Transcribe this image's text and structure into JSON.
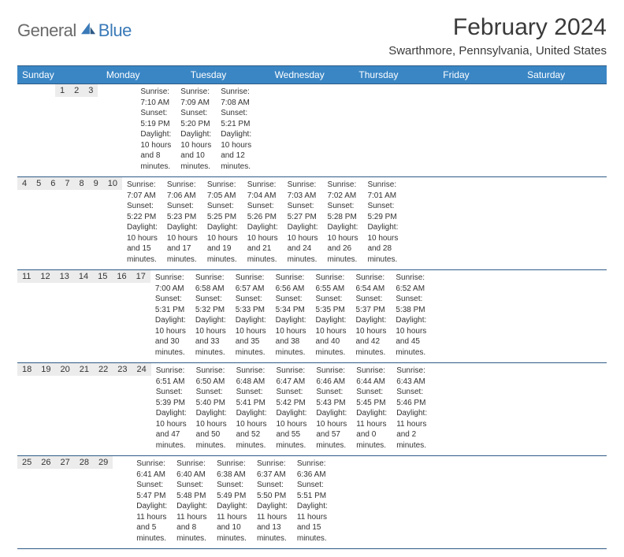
{
  "logo": {
    "text1": "General",
    "text2": "Blue"
  },
  "title": "February 2024",
  "location": "Swarthmore, Pennsylvania, United States",
  "style": {
    "header_bg": "#3a86c5",
    "header_text": "#ffffff",
    "border_color": "#2e5b86",
    "daynum_bg": "#ececec",
    "page_bg": "#ffffff",
    "body_text": "#333333",
    "title_fontsize": 30,
    "location_fontsize": 15,
    "dayheader_fontsize": 12,
    "daynum_fontsize": 11,
    "info_fontsize": 10,
    "logo_gray": "#6a6a6a",
    "logo_blue": "#3a7ab8"
  },
  "day_headers": [
    "Sunday",
    "Monday",
    "Tuesday",
    "Wednesday",
    "Thursday",
    "Friday",
    "Saturday"
  ],
  "weeks": [
    [
      {
        "blank": true
      },
      {
        "blank": true
      },
      {
        "blank": true
      },
      {
        "blank": true
      },
      {
        "n": "1",
        "sr": "Sunrise: 7:10 AM",
        "ss": "Sunset: 5:19 PM",
        "d1": "Daylight: 10 hours",
        "d2": "and 8 minutes."
      },
      {
        "n": "2",
        "sr": "Sunrise: 7:09 AM",
        "ss": "Sunset: 5:20 PM",
        "d1": "Daylight: 10 hours",
        "d2": "and 10 minutes."
      },
      {
        "n": "3",
        "sr": "Sunrise: 7:08 AM",
        "ss": "Sunset: 5:21 PM",
        "d1": "Daylight: 10 hours",
        "d2": "and 12 minutes."
      }
    ],
    [
      {
        "n": "4",
        "sr": "Sunrise: 7:07 AM",
        "ss": "Sunset: 5:22 PM",
        "d1": "Daylight: 10 hours",
        "d2": "and 15 minutes."
      },
      {
        "n": "5",
        "sr": "Sunrise: 7:06 AM",
        "ss": "Sunset: 5:23 PM",
        "d1": "Daylight: 10 hours",
        "d2": "and 17 minutes."
      },
      {
        "n": "6",
        "sr": "Sunrise: 7:05 AM",
        "ss": "Sunset: 5:25 PM",
        "d1": "Daylight: 10 hours",
        "d2": "and 19 minutes."
      },
      {
        "n": "7",
        "sr": "Sunrise: 7:04 AM",
        "ss": "Sunset: 5:26 PM",
        "d1": "Daylight: 10 hours",
        "d2": "and 21 minutes."
      },
      {
        "n": "8",
        "sr": "Sunrise: 7:03 AM",
        "ss": "Sunset: 5:27 PM",
        "d1": "Daylight: 10 hours",
        "d2": "and 24 minutes."
      },
      {
        "n": "9",
        "sr": "Sunrise: 7:02 AM",
        "ss": "Sunset: 5:28 PM",
        "d1": "Daylight: 10 hours",
        "d2": "and 26 minutes."
      },
      {
        "n": "10",
        "sr": "Sunrise: 7:01 AM",
        "ss": "Sunset: 5:29 PM",
        "d1": "Daylight: 10 hours",
        "d2": "and 28 minutes."
      }
    ],
    [
      {
        "n": "11",
        "sr": "Sunrise: 7:00 AM",
        "ss": "Sunset: 5:31 PM",
        "d1": "Daylight: 10 hours",
        "d2": "and 30 minutes."
      },
      {
        "n": "12",
        "sr": "Sunrise: 6:58 AM",
        "ss": "Sunset: 5:32 PM",
        "d1": "Daylight: 10 hours",
        "d2": "and 33 minutes."
      },
      {
        "n": "13",
        "sr": "Sunrise: 6:57 AM",
        "ss": "Sunset: 5:33 PM",
        "d1": "Daylight: 10 hours",
        "d2": "and 35 minutes."
      },
      {
        "n": "14",
        "sr": "Sunrise: 6:56 AM",
        "ss": "Sunset: 5:34 PM",
        "d1": "Daylight: 10 hours",
        "d2": "and 38 minutes."
      },
      {
        "n": "15",
        "sr": "Sunrise: 6:55 AM",
        "ss": "Sunset: 5:35 PM",
        "d1": "Daylight: 10 hours",
        "d2": "and 40 minutes."
      },
      {
        "n": "16",
        "sr": "Sunrise: 6:54 AM",
        "ss": "Sunset: 5:37 PM",
        "d1": "Daylight: 10 hours",
        "d2": "and 42 minutes."
      },
      {
        "n": "17",
        "sr": "Sunrise: 6:52 AM",
        "ss": "Sunset: 5:38 PM",
        "d1": "Daylight: 10 hours",
        "d2": "and 45 minutes."
      }
    ],
    [
      {
        "n": "18",
        "sr": "Sunrise: 6:51 AM",
        "ss": "Sunset: 5:39 PM",
        "d1": "Daylight: 10 hours",
        "d2": "and 47 minutes."
      },
      {
        "n": "19",
        "sr": "Sunrise: 6:50 AM",
        "ss": "Sunset: 5:40 PM",
        "d1": "Daylight: 10 hours",
        "d2": "and 50 minutes."
      },
      {
        "n": "20",
        "sr": "Sunrise: 6:48 AM",
        "ss": "Sunset: 5:41 PM",
        "d1": "Daylight: 10 hours",
        "d2": "and 52 minutes."
      },
      {
        "n": "21",
        "sr": "Sunrise: 6:47 AM",
        "ss": "Sunset: 5:42 PM",
        "d1": "Daylight: 10 hours",
        "d2": "and 55 minutes."
      },
      {
        "n": "22",
        "sr": "Sunrise: 6:46 AM",
        "ss": "Sunset: 5:43 PM",
        "d1": "Daylight: 10 hours",
        "d2": "and 57 minutes."
      },
      {
        "n": "23",
        "sr": "Sunrise: 6:44 AM",
        "ss": "Sunset: 5:45 PM",
        "d1": "Daylight: 11 hours",
        "d2": "and 0 minutes."
      },
      {
        "n": "24",
        "sr": "Sunrise: 6:43 AM",
        "ss": "Sunset: 5:46 PM",
        "d1": "Daylight: 11 hours",
        "d2": "and 2 minutes."
      }
    ],
    [
      {
        "n": "25",
        "sr": "Sunrise: 6:41 AM",
        "ss": "Sunset: 5:47 PM",
        "d1": "Daylight: 11 hours",
        "d2": "and 5 minutes."
      },
      {
        "n": "26",
        "sr": "Sunrise: 6:40 AM",
        "ss": "Sunset: 5:48 PM",
        "d1": "Daylight: 11 hours",
        "d2": "and 8 minutes."
      },
      {
        "n": "27",
        "sr": "Sunrise: 6:38 AM",
        "ss": "Sunset: 5:49 PM",
        "d1": "Daylight: 11 hours",
        "d2": "and 10 minutes."
      },
      {
        "n": "28",
        "sr": "Sunrise: 6:37 AM",
        "ss": "Sunset: 5:50 PM",
        "d1": "Daylight: 11 hours",
        "d2": "and 13 minutes."
      },
      {
        "n": "29",
        "sr": "Sunrise: 6:36 AM",
        "ss": "Sunset: 5:51 PM",
        "d1": "Daylight: 11 hours",
        "d2": "and 15 minutes."
      },
      {
        "blank": true
      },
      {
        "blank": true
      }
    ]
  ]
}
